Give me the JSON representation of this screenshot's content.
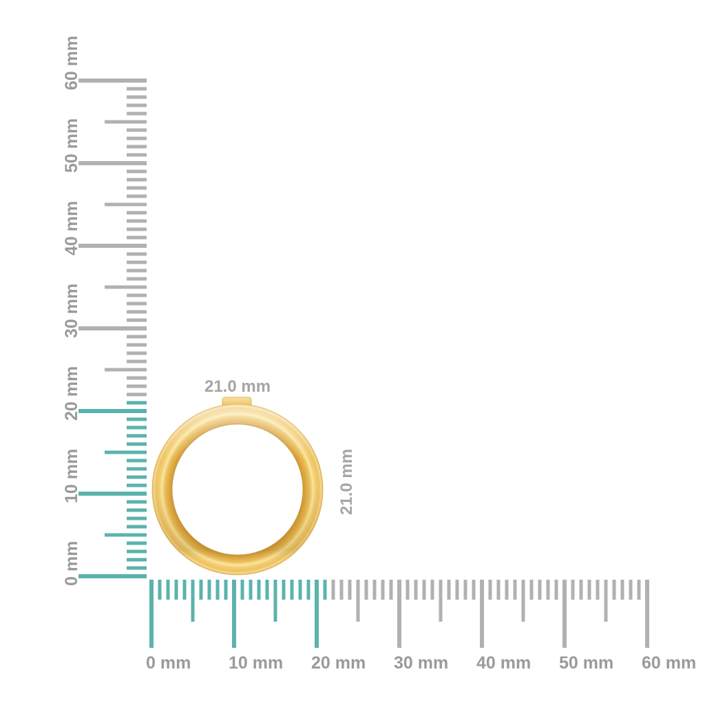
{
  "colors": {
    "background": "#FFFFFF",
    "highlight_teal": "#5BB3AC",
    "tick_gray": "#B1B1B1",
    "ruler_label_gray": "#9A9A9A",
    "dimension_label_gray": "#A5A5A5",
    "gold_dark": "#C9932E",
    "gold_mid": "#EEC05C",
    "gold_bright": "#FAE79E",
    "gold_edge": "#E3B050"
  },
  "vertical_ruler": {
    "unit": "mm",
    "min_mm": 0,
    "max_mm": 60,
    "minor_step_mm": 1,
    "mid_step_mm": 5,
    "major_step_mm": 10,
    "highlight_to_mm": 21,
    "labels": [
      "0 mm",
      "10 mm",
      "20 mm",
      "30 mm",
      "40 mm",
      "50 mm",
      "60 mm"
    ]
  },
  "horizontal_ruler": {
    "unit": "mm",
    "min_mm": 0,
    "max_mm": 60,
    "minor_step_mm": 1,
    "mid_step_mm": 5,
    "major_step_mm": 10,
    "highlight_to_mm": 21,
    "labels": [
      "0 mm",
      "10 mm",
      "20 mm",
      "30 mm",
      "40 mm",
      "50 mm",
      "60 mm"
    ]
  },
  "ring": {
    "width_label": "21.0 mm",
    "height_label": "21.0 mm",
    "outer_diameter_mm": 21.0
  }
}
